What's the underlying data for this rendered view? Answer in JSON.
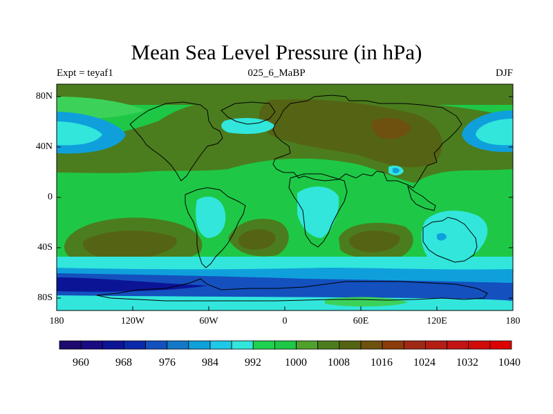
{
  "chart_data": {
    "type": "heatmap",
    "title": "Mean Sea Level Pressure (in hPa)",
    "subtitle_left": "Expt = teyaf1",
    "subtitle_center": "025_6_MaBP",
    "subtitle_right": "DJF",
    "xlim": [
      -180,
      180
    ],
    "ylim": [
      -90,
      90
    ],
    "x_ticks": [
      {
        "value": -180,
        "label": "180"
      },
      {
        "value": -120,
        "label": "120W"
      },
      {
        "value": -60,
        "label": "60W"
      },
      {
        "value": 0,
        "label": "0"
      },
      {
        "value": 60,
        "label": "60E"
      },
      {
        "value": 120,
        "label": "120E"
      },
      {
        "value": 180,
        "label": "180"
      }
    ],
    "y_ticks": [
      {
        "value": 80,
        "label": "80N"
      },
      {
        "value": 40,
        "label": "40N"
      },
      {
        "value": 0,
        "label": "0"
      },
      {
        "value": -40,
        "label": "40S"
      },
      {
        "value": -80,
        "label": "80S"
      }
    ],
    "colorbar": {
      "levels": [
        960,
        964,
        968,
        972,
        976,
        980,
        984,
        988,
        992,
        996,
        1000,
        1004,
        1008,
        1012,
        1016,
        1020,
        1024,
        1028,
        1032,
        1036,
        1040,
        1044
      ],
      "labels": [
        "960",
        "968",
        "976",
        "984",
        "992",
        "1000",
        "1008",
        "1016",
        "1024",
        "1032",
        "1040"
      ],
      "colors": [
        "#1e0a6e",
        "#1a0a82",
        "#0c1496",
        "#0a28aa",
        "#1450be",
        "#1478c8",
        "#0fa0dc",
        "#1ec8e6",
        "#32e6dc",
        "#1ed250",
        "#1ec846",
        "#50a02d",
        "#4b7d1e",
        "#556414",
        "#6e500f",
        "#8c3c0a",
        "#a02814",
        "#b41e14",
        "#c31414",
        "#d20a0a",
        "#dc0000"
      ]
    },
    "field_fills": {
      "base": "#1ec846",
      "light_green": "#3cd25a",
      "dark_green": "#4b7d1e",
      "olive": "#556414",
      "brown": "#6e500f",
      "cyan": "#32e6dc",
      "sky": "#0fa0dc",
      "blue": "#1450be",
      "navy": "#0c1496",
      "coast": "#000000"
    }
  }
}
